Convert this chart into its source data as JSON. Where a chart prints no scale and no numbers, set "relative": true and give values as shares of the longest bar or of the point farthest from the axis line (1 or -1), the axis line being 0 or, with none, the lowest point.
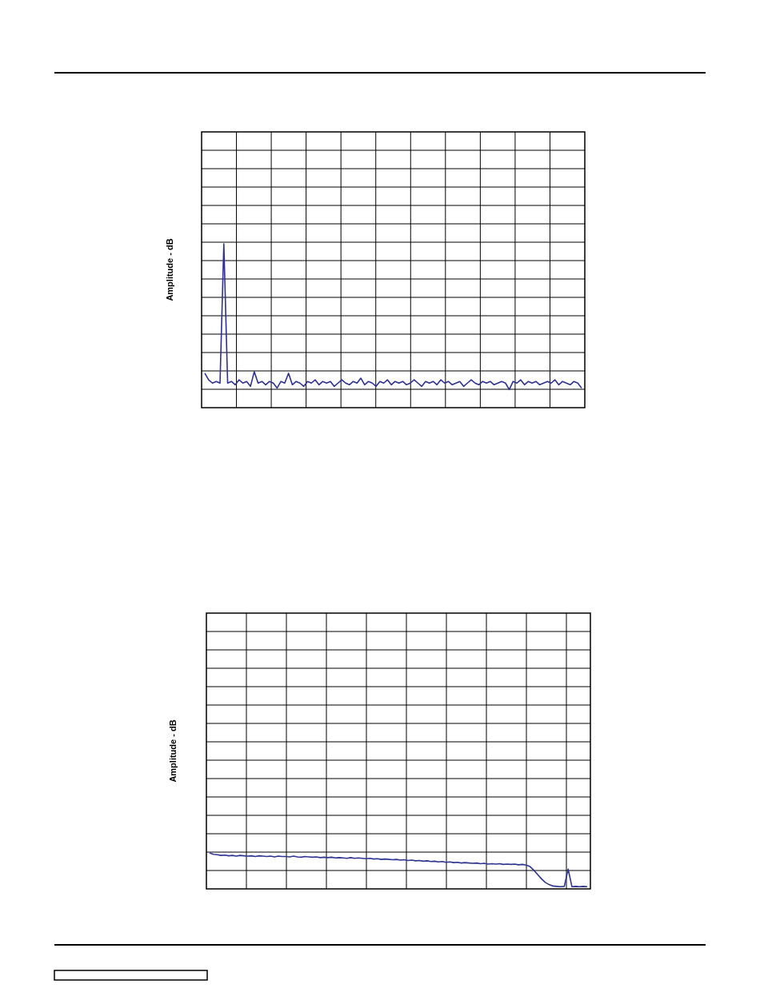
{
  "chart_data": [
    {
      "type": "line",
      "ylabel": "Amplitude - dB",
      "relative": true,
      "grid": true,
      "categories": [
        null,
        null,
        null,
        null,
        null,
        null,
        null,
        null,
        null,
        null,
        null,
        null,
        null,
        null,
        null,
        null,
        null,
        null,
        null,
        null,
        null,
        null,
        null,
        null,
        null,
        null,
        null,
        null,
        null,
        null,
        null,
        null,
        null,
        null,
        null,
        null,
        null,
        null,
        null,
        null,
        null,
        null,
        null,
        null,
        null,
        null,
        null,
        null,
        null,
        null,
        null,
        null,
        null,
        null,
        null,
        null,
        null,
        null,
        null,
        null,
        null,
        null,
        null,
        null,
        null,
        null,
        null,
        null,
        null,
        null,
        null,
        null,
        null,
        null,
        null,
        null,
        null,
        null,
        null,
        null,
        null,
        null,
        null,
        null,
        null,
        null,
        null,
        null,
        null,
        null,
        null,
        null,
        null,
        null,
        null,
        null,
        null,
        null,
        null,
        null
      ],
      "series": [
        {
          "color": "#2e3192",
          "values": [
            0.21,
            0.17,
            0.15,
            0.16,
            0.15,
            1,
            0.15,
            0.16,
            0.14,
            0.17,
            0.15,
            0.16,
            0.13,
            0.22,
            0.15,
            0.16,
            0.14,
            0.16,
            0.15,
            0.12,
            0.16,
            0.15,
            0.21,
            0.14,
            0.16,
            0.15,
            0.13,
            0.16,
            0.15,
            0.17,
            0.14,
            0.16,
            0.15,
            0.16,
            0.13,
            0.15,
            0.17,
            0.15,
            0.14,
            0.16,
            0.15,
            0.18,
            0.14,
            0.16,
            0.15,
            0.13,
            0.16,
            0.15,
            0.17,
            0.14,
            0.16,
            0.15,
            0.16,
            0.14,
            0.15,
            0.17,
            0.15,
            0.13,
            0.16,
            0.15,
            0.16,
            0.14,
            0.17,
            0.15,
            0.16,
            0.14,
            0.15,
            0.16,
            0.13,
            0.15,
            0.17,
            0.15,
            0.14,
            0.16,
            0.15,
            0.16,
            0.14,
            0.15,
            0.16,
            0.15,
            0.11,
            0.16,
            0.15,
            0.17,
            0.14,
            0.16,
            0.15,
            0.16,
            0.14,
            0.15,
            0.16,
            0.15,
            0.17,
            0.14,
            0.16,
            0.15,
            0.14,
            0.16,
            0.15,
            0.12
          ]
        }
      ]
    },
    {
      "type": "line",
      "ylabel": "Amplitude - dB",
      "relative": true,
      "grid": true,
      "categories": [
        null,
        null,
        null,
        null,
        null,
        null,
        null,
        null,
        null,
        null,
        null,
        null,
        null,
        null,
        null,
        null,
        null,
        null,
        null,
        null,
        null,
        null,
        null,
        null,
        null,
        null,
        null,
        null,
        null,
        null,
        null,
        null,
        null,
        null,
        null,
        null,
        null,
        null,
        null,
        null,
        null,
        null,
        null,
        null,
        null,
        null,
        null,
        null,
        null,
        null,
        null,
        null,
        null,
        null,
        null,
        null,
        null,
        null,
        null,
        null,
        null,
        null,
        null,
        null,
        null,
        null,
        null,
        null,
        null,
        null,
        null,
        null,
        null,
        null,
        null,
        null,
        null,
        null,
        null,
        null,
        null,
        null,
        null,
        null,
        null,
        null,
        null,
        null,
        null,
        null,
        null,
        null,
        null,
        null,
        null,
        null,
        null,
        null,
        null,
        null
      ],
      "series": [
        {
          "color": "#2f3591",
          "values": [
            1,
            0.96,
            0.95,
            0.93,
            0.94,
            0.92,
            0.93,
            0.91,
            0.93,
            0.92,
            0.91,
            0.92,
            0.9,
            0.92,
            0.91,
            0.9,
            0.91,
            0.89,
            0.91,
            0.9,
            0.9,
            0.89,
            0.91,
            0.89,
            0.88,
            0.9,
            0.89,
            0.88,
            0.89,
            0.87,
            0.88,
            0.87,
            0.88,
            0.86,
            0.87,
            0.86,
            0.85,
            0.87,
            0.85,
            0.86,
            0.85,
            0.84,
            0.85,
            0.83,
            0.84,
            0.82,
            0.83,
            0.82,
            0.81,
            0.82,
            0.8,
            0.81,
            0.79,
            0.8,
            0.78,
            0.79,
            0.77,
            0.78,
            0.76,
            0.77,
            0.75,
            0.76,
            0.74,
            0.75,
            0.73,
            0.74,
            0.72,
            0.73,
            0.72,
            0.71,
            0.72,
            0.7,
            0.71,
            0.69,
            0.7,
            0.69,
            0.7,
            0.68,
            0.69,
            0.68,
            0.69,
            0.67,
            0.68,
            0.66,
            0.62,
            0.52,
            0.4,
            0.28,
            0.18,
            0.12,
            0.08,
            0.07,
            0.06,
            0.07,
            0.55,
            0.06,
            0.07,
            0.06,
            0.07,
            0.06
          ]
        }
      ]
    }
  ]
}
